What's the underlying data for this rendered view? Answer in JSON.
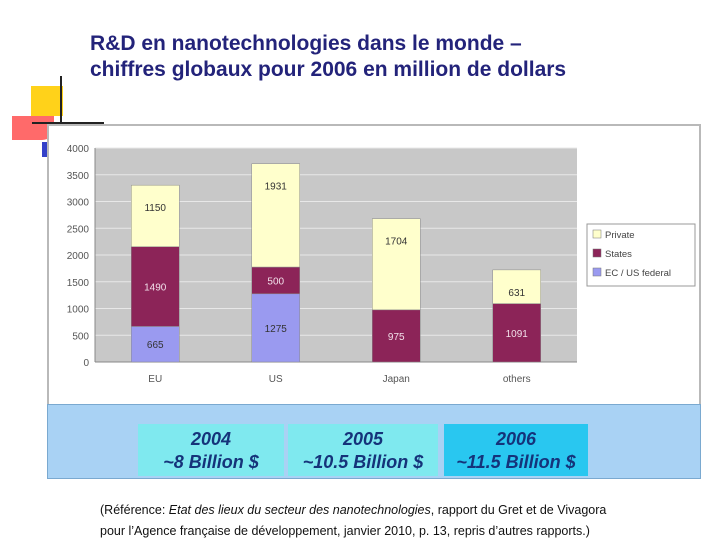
{
  "slide": {
    "title_line1": "R&D en nanotechnologies dans le monde –",
    "title_line2": "chiffres globaux pour 2006 en million de dollars"
  },
  "chart_data": {
    "type": "bar",
    "stacked": true,
    "categories": [
      "EU",
      "US",
      "Japan",
      "others"
    ],
    "series": [
      {
        "name": "EC / US federal",
        "values": [
          665,
          1275,
          0,
          0
        ],
        "color": "#9a9af0"
      },
      {
        "name": "States",
        "values": [
          1490,
          500,
          975,
          1091
        ],
        "color": "#8c2458"
      },
      {
        "name": "Private",
        "values": [
          1150,
          1931,
          1704,
          631
        ],
        "color": "#ffffcc"
      }
    ],
    "bar_labels": [
      [
        "665",
        "1275",
        "0",
        "0"
      ],
      [
        "1490",
        "500",
        "975",
        "1091"
      ],
      [
        "1150",
        "1931",
        "1704",
        "631"
      ]
    ],
    "legend_order": [
      "Private",
      "States",
      "EC / US federal"
    ],
    "yticks": [
      "0",
      "500",
      "1000",
      "1500",
      "2000",
      "2500",
      "3000",
      "3500",
      "4000"
    ],
    "ylim": [
      0,
      4000
    ],
    "grid": true,
    "legend_position": "right",
    "title": "",
    "xlabel": "",
    "ylabel": ""
  },
  "totals": [
    {
      "year": "2004",
      "amount": "~8 Billion $"
    },
    {
      "year": "2005",
      "amount": "~10.5 Billion $"
    },
    {
      "year": "2006",
      "amount": "~11.5 Billion $"
    }
  ],
  "reference": {
    "part1": "(Référence: ",
    "italic": "Etat des lieux du secteur des nanotechnologies",
    "part2": ", rapport du Gret et de Vivagora",
    "line2": "pour l’Agence française de développement, janvier 2010, p. 13, repris d’autres rapports.)"
  }
}
